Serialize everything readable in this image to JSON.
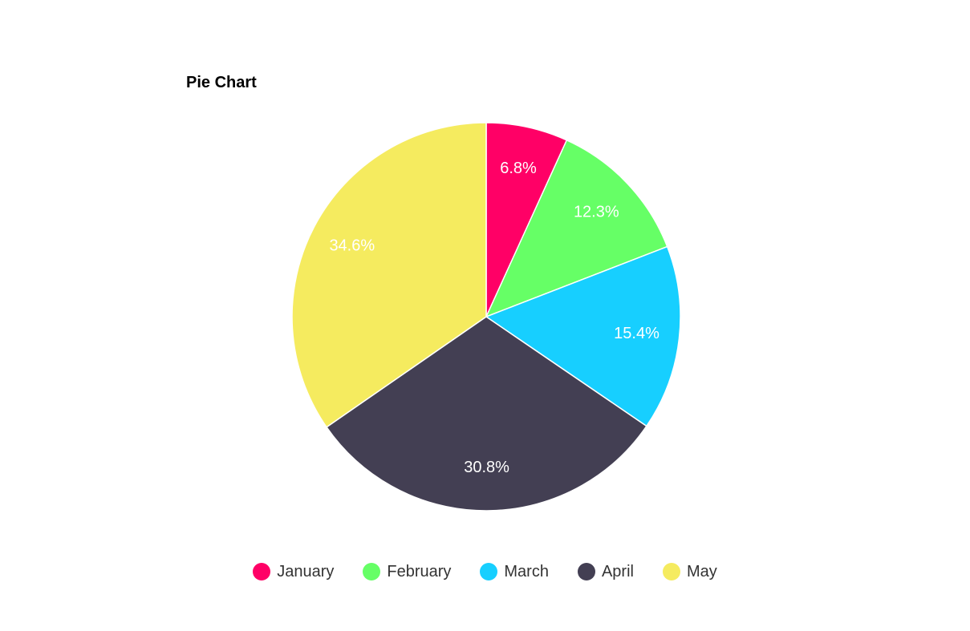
{
  "chart_data": {
    "type": "pie",
    "title": "Pie Chart",
    "categories": [
      "January",
      "February",
      "March",
      "April",
      "May"
    ],
    "values": [
      6.8,
      12.3,
      15.4,
      30.8,
      34.6
    ],
    "labels": [
      "6.8%",
      "12.3%",
      "15.4%",
      "30.8%",
      "34.6%"
    ],
    "colors": [
      "#ff0066",
      "#66ff66",
      "#17cfff",
      "#433f53",
      "#f5eb5f"
    ],
    "legend_position": "bottom",
    "start_angle": "top",
    "direction": "clockwise"
  }
}
